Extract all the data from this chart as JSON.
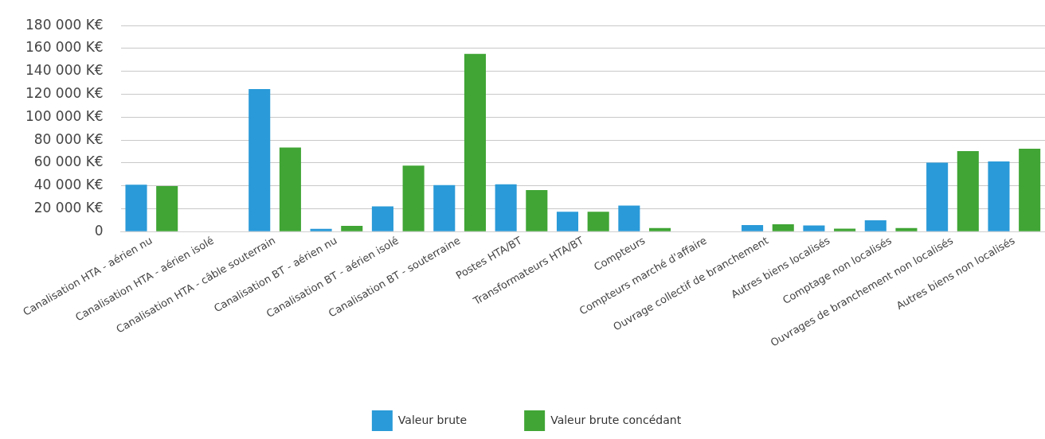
{
  "chart_data": {
    "type": "bar",
    "categories": [
      "Canalisation HTA - aérien nu",
      "Canalisation HTA - aérien isolé",
      "Canalisation HTA - câble souterrain",
      "Canalisation BT - aérien nu",
      "Canalisation BT - aérien isolé",
      "Canalisation BT - souterraine",
      "Postes HTA/BT",
      "Transformateurs HTA/BT",
      "Compteurs",
      "Compteurs marché d'affaire",
      "Ouvrage collectif de branchement",
      "Autres biens localisés",
      "Comptage non localisés",
      "Ouvrages de branchement non localisés",
      "Autres biens non localisés"
    ],
    "series": [
      {
        "name": "Valeur brute",
        "color": "#2a9ad8",
        "values": [
          41100,
          0,
          124500,
          2500,
          22100,
          40700,
          41300,
          17400,
          22800,
          0,
          5800,
          5400,
          10000,
          60300,
          61400
        ]
      },
      {
        "name": "Valeur brute concédant",
        "color": "#40a535",
        "values": [
          39800,
          0,
          73500,
          5100,
          57700,
          155300,
          36400,
          17400,
          3100,
          0,
          6500,
          2700,
          3100,
          70400,
          72400
        ]
      }
    ],
    "ylim": [
      0,
      180000
    ],
    "yticks": [
      {
        "value": 0,
        "label": "0"
      },
      {
        "value": 20000,
        "label": "20 000 K€"
      },
      {
        "value": 40000,
        "label": "40 000 K€"
      },
      {
        "value": 60000,
        "label": "60 000 K€"
      },
      {
        "value": 80000,
        "label": "80 000 K€"
      },
      {
        "value": 100000,
        "label": "100 000 K€"
      },
      {
        "value": 120000,
        "label": "120 000 K€"
      },
      {
        "value": 140000,
        "label": "140 000 K€"
      },
      {
        "value": 160000,
        "label": "160 000 K€"
      },
      {
        "value": 180000,
        "label": "180 000 K€"
      }
    ],
    "grid": "y",
    "legend": "bottom"
  }
}
